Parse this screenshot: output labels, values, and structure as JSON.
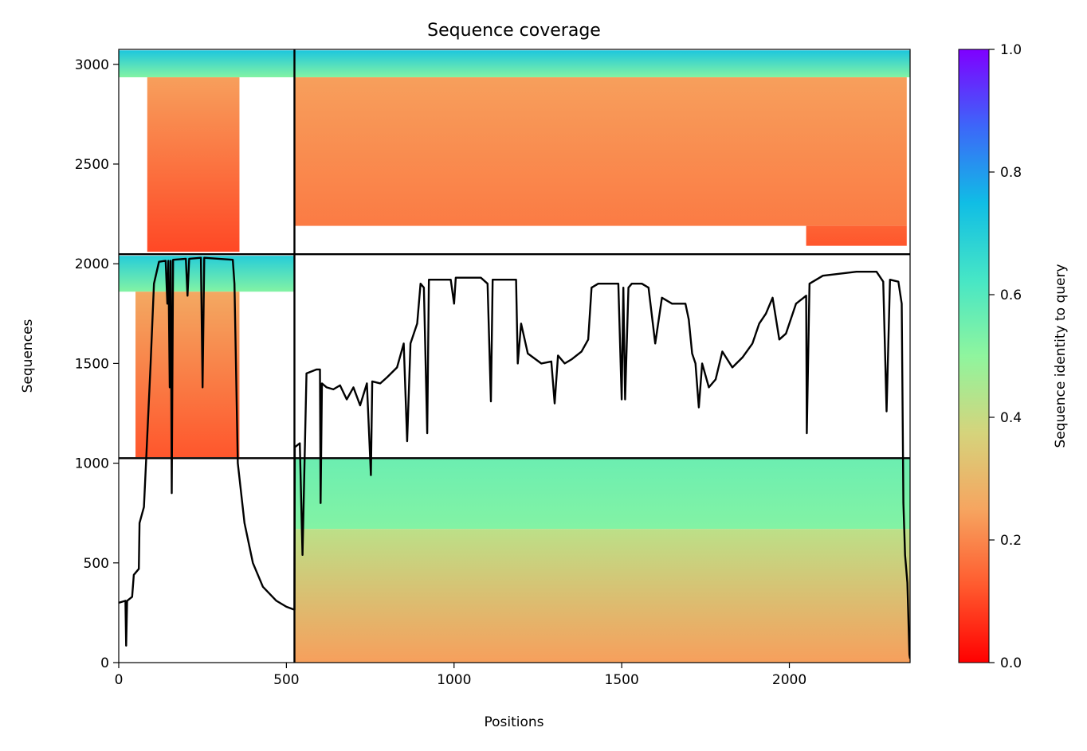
{
  "chart_data": {
    "type": "heatmap",
    "title": "Sequence coverage",
    "xlabel": "Positions",
    "ylabel": "Sequences",
    "xlim": [
      0,
      2360
    ],
    "ylim": [
      0,
      3075
    ],
    "xticks": [
      0,
      500,
      1000,
      1500,
      2000
    ],
    "yticks": [
      0,
      500,
      1000,
      1500,
      2000,
      2500,
      3000
    ],
    "colorbar": {
      "label": "Sequence identity to query",
      "colormap": "rainbow_r",
      "range": [
        0,
        1
      ],
      "ticks": [
        "0.0",
        "0.2",
        "0.4",
        "0.6",
        "0.8",
        "1.0"
      ]
    },
    "chain_boundaries": {
      "positions": [
        524
      ],
      "sequences": [
        1025,
        2048
      ]
    },
    "blocks": [
      {
        "name": "block-1",
        "x": [
          0,
          524
        ],
        "y": [
          2048,
          3075
        ],
        "segments": [
          {
            "x": [
              0,
              524
            ],
            "y": [
              2935,
              3070
            ],
            "identity_top": 0.72,
            "identity_bottom": 0.52
          },
          {
            "x": [
              85,
              360
            ],
            "y": [
              2060,
              2935
            ],
            "identity_top": 0.24,
            "identity_bottom": 0.1
          }
        ]
      },
      {
        "name": "block-2",
        "x": [
          524,
          2360
        ],
        "y": [
          2048,
          3075
        ],
        "segments": [
          {
            "x": [
              524,
              2360
            ],
            "y": [
              2935,
              3070
            ],
            "identity_top": 0.72,
            "identity_bottom": 0.52
          },
          {
            "x": [
              524,
              2350
            ],
            "y": [
              2190,
              2935
            ],
            "identity_top": 0.24,
            "identity_bottom": 0.18
          },
          {
            "x": [
              2050,
              2350
            ],
            "y": [
              2090,
              2190
            ],
            "identity_top": 0.14,
            "identity_bottom": 0.12
          }
        ]
      },
      {
        "name": "block-3",
        "x": [
          0,
          524
        ],
        "y": [
          1025,
          2048
        ],
        "segments": [
          {
            "x": [
              0,
              524
            ],
            "y": [
              1860,
              2040
            ],
            "identity_top": 0.7,
            "identity_bottom": 0.52
          },
          {
            "x": [
              50,
              360
            ],
            "y": [
              1030,
              1860
            ],
            "identity_top": 0.26,
            "identity_bottom": 0.12
          }
        ]
      },
      {
        "name": "block-4",
        "x": [
          524,
          2360
        ],
        "y": [
          0,
          1025
        ],
        "segments": [
          {
            "x": [
              524,
              2360
            ],
            "y": [
              670,
              1020
            ],
            "identity_top": 0.56,
            "identity_bottom": 0.52
          },
          {
            "x": [
              524,
              2360
            ],
            "y": [
              0,
              670
            ],
            "identity_top": 0.42,
            "identity_bottom": 0.24
          }
        ]
      }
    ],
    "coverage_line": {
      "name": "coverage",
      "points": [
        [
          0,
          300
        ],
        [
          20,
          310
        ],
        [
          22,
          85
        ],
        [
          25,
          310
        ],
        [
          40,
          330
        ],
        [
          45,
          440
        ],
        [
          60,
          470
        ],
        [
          62,
          700
        ],
        [
          75,
          780
        ],
        [
          82,
          1025
        ],
        [
          95,
          1500
        ],
        [
          105,
          1900
        ],
        [
          120,
          2010
        ],
        [
          140,
          2015
        ],
        [
          145,
          1800
        ],
        [
          148,
          2015
        ],
        [
          152,
          1380
        ],
        [
          155,
          2015
        ],
        [
          158,
          850
        ],
        [
          162,
          2020
        ],
        [
          200,
          2025
        ],
        [
          205,
          1840
        ],
        [
          210,
          2025
        ],
        [
          245,
          2030
        ],
        [
          250,
          1380
        ],
        [
          255,
          2030
        ],
        [
          340,
          2020
        ],
        [
          345,
          1900
        ],
        [
          355,
          1000
        ],
        [
          375,
          700
        ],
        [
          400,
          500
        ],
        [
          430,
          380
        ],
        [
          470,
          310
        ],
        [
          500,
          280
        ],
        [
          524,
          265
        ],
        [
          525,
          1080
        ],
        [
          540,
          1100
        ],
        [
          548,
          540
        ],
        [
          560,
          1450
        ],
        [
          590,
          1470
        ],
        [
          600,
          1470
        ],
        [
          602,
          800
        ],
        [
          606,
          1400
        ],
        [
          620,
          1380
        ],
        [
          640,
          1370
        ],
        [
          660,
          1390
        ],
        [
          680,
          1320
        ],
        [
          700,
          1380
        ],
        [
          720,
          1290
        ],
        [
          740,
          1400
        ],
        [
          752,
          940
        ],
        [
          756,
          1410
        ],
        [
          780,
          1400
        ],
        [
          800,
          1430
        ],
        [
          830,
          1480
        ],
        [
          850,
          1600
        ],
        [
          860,
          1110
        ],
        [
          870,
          1600
        ],
        [
          890,
          1700
        ],
        [
          900,
          1900
        ],
        [
          910,
          1880
        ],
        [
          920,
          1150
        ],
        [
          925,
          1920
        ],
        [
          990,
          1920
        ],
        [
          1000,
          1800
        ],
        [
          1005,
          1930
        ],
        [
          1080,
          1930
        ],
        [
          1100,
          1900
        ],
        [
          1110,
          1310
        ],
        [
          1115,
          1920
        ],
        [
          1185,
          1920
        ],
        [
          1190,
          1500
        ],
        [
          1200,
          1700
        ],
        [
          1220,
          1550
        ],
        [
          1260,
          1500
        ],
        [
          1290,
          1510
        ],
        [
          1300,
          1300
        ],
        [
          1310,
          1540
        ],
        [
          1330,
          1500
        ],
        [
          1350,
          1520
        ],
        [
          1380,
          1560
        ],
        [
          1400,
          1620
        ],
        [
          1410,
          1880
        ],
        [
          1430,
          1900
        ],
        [
          1490,
          1900
        ],
        [
          1500,
          1320
        ],
        [
          1505,
          1880
        ],
        [
          1510,
          1320
        ],
        [
          1520,
          1880
        ],
        [
          1530,
          1900
        ],
        [
          1560,
          1900
        ],
        [
          1580,
          1880
        ],
        [
          1600,
          1600
        ],
        [
          1620,
          1830
        ],
        [
          1650,
          1800
        ],
        [
          1690,
          1800
        ],
        [
          1700,
          1720
        ],
        [
          1710,
          1550
        ],
        [
          1720,
          1500
        ],
        [
          1730,
          1280
        ],
        [
          1740,
          1500
        ],
        [
          1760,
          1380
        ],
        [
          1780,
          1420
        ],
        [
          1800,
          1560
        ],
        [
          1830,
          1480
        ],
        [
          1860,
          1530
        ],
        [
          1890,
          1600
        ],
        [
          1910,
          1700
        ],
        [
          1930,
          1750
        ],
        [
          1950,
          1830
        ],
        [
          1970,
          1620
        ],
        [
          1990,
          1650
        ],
        [
          2000,
          1700
        ],
        [
          2020,
          1800
        ],
        [
          2050,
          1840
        ],
        [
          2052,
          1150
        ],
        [
          2060,
          1900
        ],
        [
          2100,
          1940
        ],
        [
          2200,
          1960
        ],
        [
          2260,
          1960
        ],
        [
          2280,
          1910
        ],
        [
          2290,
          1260
        ],
        [
          2300,
          1920
        ],
        [
          2325,
          1910
        ],
        [
          2335,
          1800
        ],
        [
          2340,
          800
        ],
        [
          2345,
          540
        ],
        [
          2352,
          400
        ],
        [
          2358,
          40
        ],
        [
          2360,
          20
        ]
      ]
    }
  }
}
